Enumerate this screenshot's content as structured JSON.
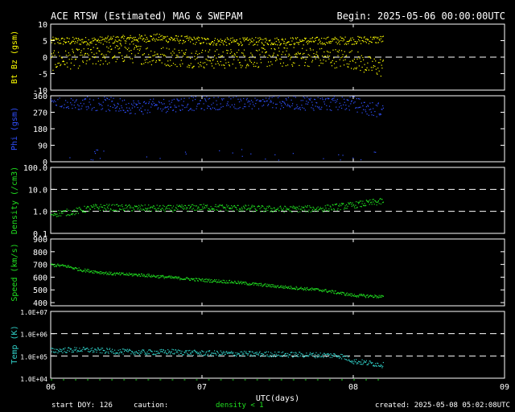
{
  "header": {
    "title": "ACE RTSW (Estimated) MAG & SWEPAM",
    "begin": "Begin: 2025-05-06 00:00:00UTC"
  },
  "footer": {
    "start_doy": "start DOY: 126",
    "caution": "caution:",
    "density_note": "density < 1",
    "created": "created: 2025-05-08 05:02:08UTC"
  },
  "colors": {
    "yellow": "#ffff00",
    "blue": "#3050ff",
    "green": "#20e020",
    "cyan": "#30d0c8",
    "frame": "#ffffff",
    "background": "#000000"
  },
  "chart_data": [
    {
      "type": "scatter",
      "id": "mag-bt-bz",
      "ylabel": "Bt  Bz  (gsm)",
      "ylim": [
        -10,
        10
      ],
      "yticks": [
        "10",
        "5",
        "0",
        "-5",
        "-10"
      ],
      "dashed_at": [
        0
      ],
      "xlim": [
        0,
        3
      ],
      "series": [
        {
          "name": "Bt",
          "color": "#ffff00",
          "x": [
            0,
            0.25,
            0.5,
            0.7,
            0.9,
            1.1,
            1.4,
            1.7,
            2.0,
            2.2
          ],
          "values": [
            5.0,
            5.0,
            5.6,
            6.0,
            5.3,
            4.8,
            4.9,
            5.0,
            5.2,
            5.5
          ]
        },
        {
          "name": "Bz",
          "color": "#ffff00",
          "x": [
            0,
            0.25,
            0.5,
            0.7,
            0.9,
            1.1,
            1.4,
            1.7,
            2.0,
            2.1,
            2.2
          ],
          "values": [
            -1.0,
            0.0,
            1.5,
            0.5,
            0.0,
            -0.5,
            0.0,
            0.3,
            -0.5,
            -2.5,
            -3.0
          ]
        }
      ]
    },
    {
      "type": "scatter",
      "id": "mag-phi",
      "ylabel": "Phi (gsm)",
      "ylim": [
        0,
        360
      ],
      "yticks": [
        "360",
        "270",
        "180",
        "90",
        "0"
      ],
      "dashed_at": [],
      "xlim": [
        0,
        3
      ],
      "series": [
        {
          "name": "Phi",
          "color": "#3050ff",
          "x": [
            0,
            0.3,
            0.6,
            0.9,
            1.2,
            1.5,
            1.8,
            2.0,
            2.1,
            2.2
          ],
          "values": [
            340,
            320,
            300,
            320,
            330,
            330,
            320,
            320,
            290,
            285
          ]
        }
      ]
    },
    {
      "type": "scatter",
      "id": "swepam-density",
      "ylabel": "Density  (/cm3)",
      "yscale": "log",
      "ylim": [
        0.1,
        100
      ],
      "yticks": [
        "100.0",
        "10.0",
        "1.0",
        "0.1"
      ],
      "dashed_at": [
        10,
        1
      ],
      "xlim": [
        0,
        3
      ],
      "series": [
        {
          "name": "Density",
          "color": "#20e020",
          "x": [
            0,
            0.15,
            0.3,
            0.5,
            0.8,
            1.0,
            1.2,
            1.5,
            1.8,
            2.0,
            2.2
          ],
          "values": [
            0.8,
            1.0,
            1.6,
            1.5,
            1.4,
            1.6,
            1.5,
            1.3,
            1.4,
            2.0,
            3.0
          ]
        }
      ]
    },
    {
      "type": "scatter",
      "id": "swepam-speed",
      "ylabel": "Speed  (km/s)",
      "ylim": [
        375,
        900
      ],
      "yticks": [
        "900",
        "800",
        "700",
        "600",
        "500",
        "400"
      ],
      "dashed_at": [],
      "xlim": [
        0,
        3
      ],
      "series": [
        {
          "name": "Speed",
          "color": "#20e020",
          "x": [
            0,
            0.1,
            0.2,
            0.4,
            0.6,
            0.8,
            1.0,
            1.2,
            1.5,
            1.8,
            2.0,
            2.2
          ],
          "values": [
            700,
            690,
            660,
            630,
            620,
            600,
            580,
            565,
            530,
            500,
            460,
            450
          ]
        }
      ]
    },
    {
      "type": "scatter",
      "id": "swepam-temp",
      "ylabel": "Temp  (K)",
      "yscale": "log",
      "ylim": [
        10000,
        10000000
      ],
      "yticks": [
        "1.0E+07",
        "1.0E+06",
        "1.0E+05",
        "1.0E+04"
      ],
      "dashed_at": [
        1000000,
        100000
      ],
      "xlim": [
        0,
        3
      ],
      "series": [
        {
          "name": "Temp",
          "color": "#30d0c8",
          "x": [
            0,
            0.2,
            0.4,
            0.6,
            0.8,
            1.0,
            1.3,
            1.6,
            1.9,
            2.0,
            2.1,
            2.2
          ],
          "values": [
            180000,
            200000,
            170000,
            150000,
            160000,
            140000,
            130000,
            120000,
            110000,
            60000,
            50000,
            40000
          ]
        }
      ]
    }
  ],
  "xaxis": {
    "label": "UTC(days)",
    "ticks": [
      "06",
      "07",
      "08",
      "09"
    ]
  }
}
